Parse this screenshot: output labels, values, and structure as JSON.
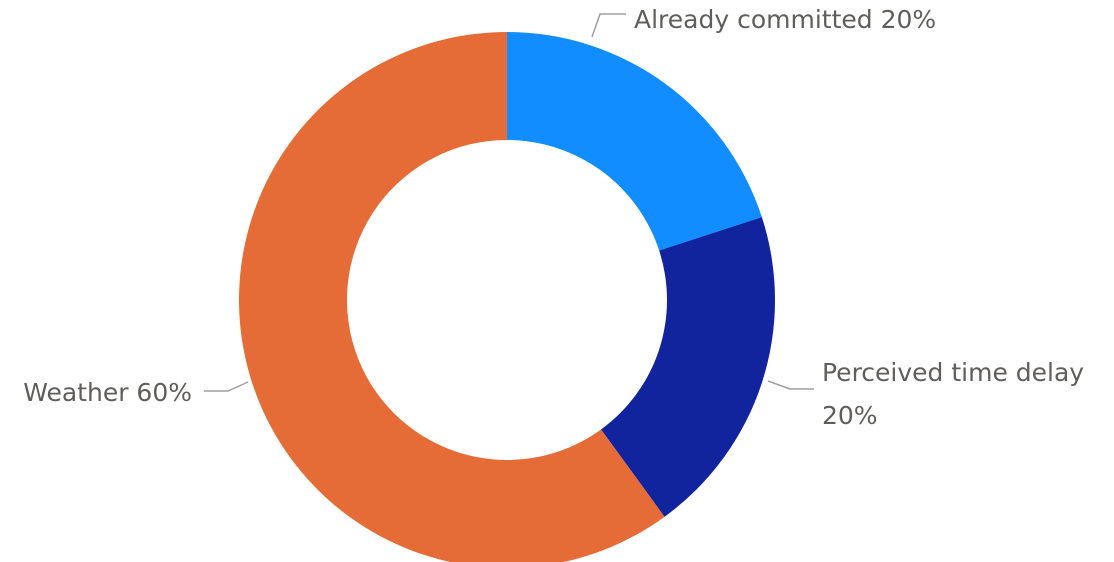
{
  "chart_data": {
    "type": "pie",
    "subtype": "donut",
    "slices": [
      {
        "label": "Already committed",
        "value": 20,
        "percent_label": "20%",
        "color": "#118DFF"
      },
      {
        "label": "Perceived time delay",
        "value": 20,
        "percent_label": "20%",
        "color": "#12239E"
      },
      {
        "label": "Weather",
        "value": 60,
        "percent_label": "60%",
        "color": "#E66C37"
      }
    ],
    "label_style": "category and percent",
    "legend": "none",
    "label_color": "#605E5C",
    "leader_color": "#A19F9D"
  }
}
